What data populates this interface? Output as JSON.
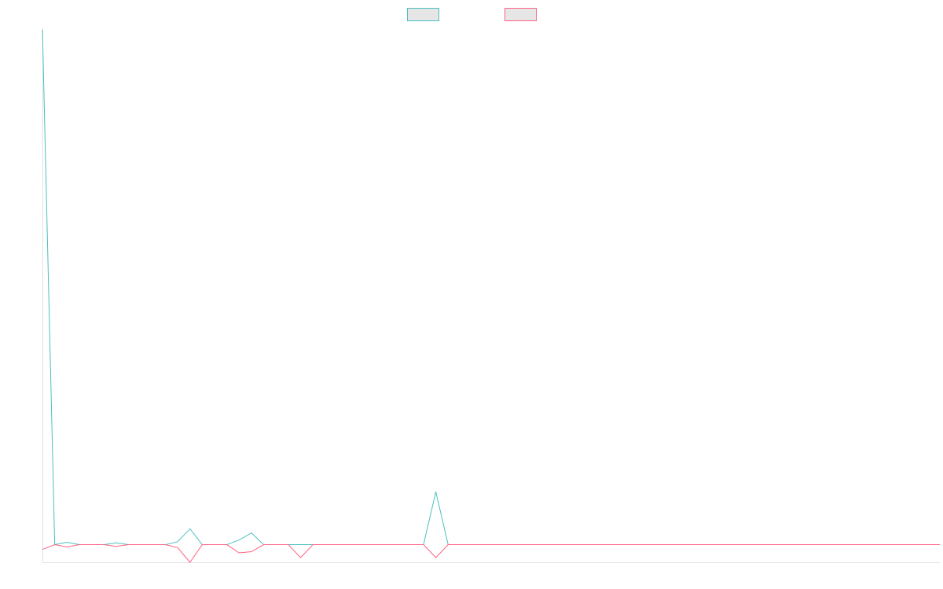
{
  "chart_data": {
    "type": "line",
    "title": "",
    "xlabel": "",
    "ylabel": "",
    "ylim": [
      -1.5,
      44
    ],
    "grid": false,
    "legend": "top-center",
    "series": [
      {
        "name": "",
        "color": "#4bc0c0",
        "fill": "#e6e6e6",
        "values": [
          43.8,
          0,
          0.2,
          0,
          0,
          0,
          0.15,
          0,
          0,
          0,
          0,
          0.25,
          1.35,
          0,
          0,
          0,
          0.4,
          1.0,
          0,
          0,
          0,
          0,
          0,
          0,
          0,
          0,
          0,
          0,
          0,
          0,
          0,
          0,
          4.5,
          0,
          0,
          0,
          0,
          0,
          0,
          0,
          0,
          0,
          0,
          0,
          0,
          0,
          0,
          0,
          0,
          0,
          0,
          0,
          0,
          0,
          0,
          0,
          0,
          0,
          0,
          0,
          0,
          0,
          0,
          0,
          0,
          0,
          0,
          0,
          0,
          0,
          0,
          0,
          0,
          0
        ]
      },
      {
        "name": "",
        "color": "#ff6384",
        "fill": "#e6e6e6",
        "values": [
          -0.4,
          0,
          -0.2,
          0,
          0,
          0,
          -0.15,
          0,
          0,
          0,
          0,
          -0.25,
          -1.5,
          0,
          0,
          0,
          -0.7,
          -0.6,
          0,
          0,
          0,
          -1.1,
          0,
          0,
          0,
          0,
          0,
          0,
          0,
          0,
          0,
          0,
          -1.1,
          0,
          0,
          0,
          0,
          0,
          0,
          0,
          0,
          0,
          0,
          0,
          0,
          0,
          0,
          0,
          0,
          0,
          0,
          0,
          0,
          0,
          0,
          0,
          0,
          0,
          0,
          0,
          0,
          0,
          0,
          0,
          0,
          0,
          0,
          0,
          0,
          0,
          0,
          0,
          0,
          0
        ]
      }
    ]
  }
}
